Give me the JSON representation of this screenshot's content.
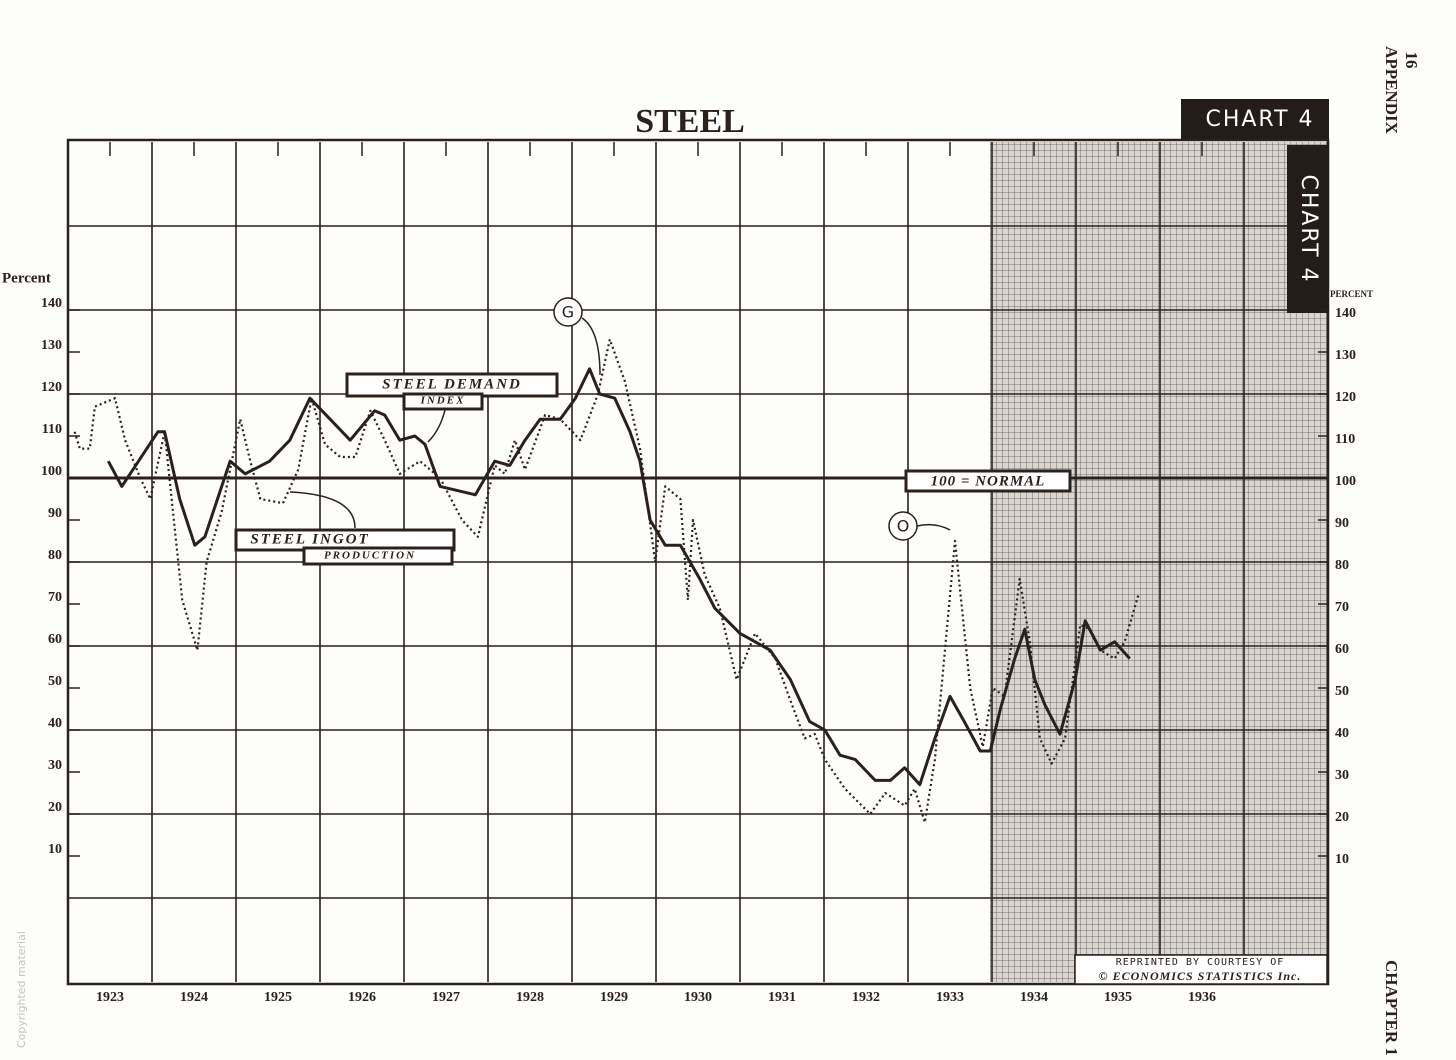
{
  "chart_data": {
    "type": "line",
    "title": "STEEL",
    "chart_label": "CHART 4",
    "chart_label_side": "CHART 4",
    "page_number": "16",
    "page_header": "APPENDIX",
    "page_footer": "CHAPTER 1",
    "watermark": "Copyrighted material",
    "y_axis_label": "Percent",
    "y2_axis_label": "Percent",
    "normal_label": "100 = NORMAL",
    "normal_line": 100,
    "markers": [
      "G",
      "O"
    ],
    "demand_label": [
      "STEEL DEMAND",
      "INDEX"
    ],
    "ingot_label": [
      "STEEL INGOT",
      "PRODUCTION"
    ],
    "credit": [
      "REPRINTED BY COURTESY OF",
      "© ECONOMICS STATISTICS Inc."
    ],
    "xlim": [
      1923,
      1938
    ],
    "xticks": [
      {
        "value": 1923.5,
        "label": "1923"
      },
      {
        "value": 1924.5,
        "label": "1924"
      },
      {
        "value": 1925.5,
        "label": "1925"
      },
      {
        "value": 1926.5,
        "label": "1926"
      },
      {
        "value": 1927.5,
        "label": "1927"
      },
      {
        "value": 1928.5,
        "label": "1928"
      },
      {
        "value": 1929.5,
        "label": "1929"
      },
      {
        "value": 1930.5,
        "label": "1930"
      },
      {
        "value": 1931.5,
        "label": "1931"
      },
      {
        "value": 1932.5,
        "label": "1932"
      },
      {
        "value": 1933.5,
        "label": "1933"
      },
      {
        "value": 1934.5,
        "label": "1934"
      },
      {
        "value": 1935.5,
        "label": "1935"
      },
      {
        "value": 1936.5,
        "label": "1936"
      }
    ],
    "xgrid": [
      1923,
      1924,
      1925,
      1926,
      1927,
      1928,
      1929,
      1930,
      1931,
      1932,
      1933,
      1934,
      1935,
      1936,
      1937,
      1938
    ],
    "ylim": [
      -20,
      180
    ],
    "yticks": [
      10,
      20,
      30,
      40,
      50,
      60,
      70,
      80,
      90,
      100,
      110,
      120,
      130,
      140
    ],
    "y2lim": [
      -20,
      180
    ],
    "y2ticks": [
      10,
      20,
      30,
      40,
      50,
      60,
      70,
      80,
      90,
      100,
      110,
      120,
      130,
      140
    ],
    "ygrid": [
      0,
      20,
      40,
      60,
      80,
      100,
      120,
      140,
      160
    ],
    "grid": true,
    "series": [
      {
        "name": "STEEL DEMAND INDEX",
        "color": "#2a201c",
        "style": "solid",
        "x": [
          1923.48,
          1923.64,
          1924.07,
          1924.15,
          1924.33,
          1924.51,
          1924.63,
          1924.93,
          1925.11,
          1925.4,
          1925.64,
          1925.88,
          1926.12,
          1926.36,
          1926.65,
          1926.77,
          1926.95,
          1927.13,
          1927.25,
          1927.43,
          1927.85,
          1928.08,
          1928.26,
          1928.44,
          1928.62,
          1928.86,
          1929.04,
          1929.21,
          1929.33,
          1929.51,
          1929.69,
          1929.81,
          1929.93,
          1930.11,
          1930.29,
          1930.52,
          1930.7,
          1931.0,
          1931.36,
          1931.6,
          1931.83,
          1932.01,
          1932.19,
          1932.37,
          1932.61,
          1932.79,
          1932.96,
          1933.14,
          1933.32,
          1933.5,
          1933.67,
          1933.86,
          1933.98,
          1934.1,
          1934.27,
          1934.39,
          1934.51,
          1934.63,
          1934.81,
          1934.99,
          1935.11,
          1935.29,
          1935.46,
          1935.64
        ],
        "values": [
          104,
          98,
          111,
          111,
          95,
          84,
          86,
          104,
          101,
          104,
          109,
          119,
          114,
          109,
          116,
          115,
          109,
          110,
          108,
          98,
          96,
          104,
          103,
          109,
          114,
          114,
          119,
          126,
          120,
          119,
          111,
          104,
          90,
          84,
          84,
          76,
          69,
          63,
          59,
          52,
          42,
          40,
          34,
          33,
          28,
          28,
          31,
          27,
          38,
          48,
          42,
          35,
          35,
          45,
          57,
          64,
          52,
          46,
          39,
          52,
          66,
          59,
          61,
          57
        ]
      },
      {
        "name": "STEEL INGOT PRODUCTION",
        "color": "#2a201c",
        "style": "dotted",
        "x": [
          1923.08,
          1923.14,
          1923.26,
          1923.32,
          1923.56,
          1923.68,
          1923.86,
          1923.98,
          1924.15,
          1924.36,
          1924.54,
          1924.65,
          1924.83,
          1925.05,
          1925.17,
          1925.29,
          1925.56,
          1925.74,
          1925.9,
          1926.06,
          1926.24,
          1926.42,
          1926.6,
          1926.77,
          1926.95,
          1927.19,
          1927.43,
          1927.69,
          1927.88,
          1928.08,
          1928.2,
          1928.32,
          1928.44,
          1928.68,
          1928.86,
          1929.1,
          1929.31,
          1929.45,
          1929.63,
          1929.81,
          1929.99,
          1930.11,
          1930.29,
          1930.38,
          1930.44,
          1930.58,
          1930.76,
          1930.96,
          1931.18,
          1931.42,
          1931.6,
          1931.77,
          1931.89,
          1932.01,
          1932.25,
          1932.55,
          1932.73,
          1932.96,
          1933.08,
          1933.2,
          1933.32,
          1933.56,
          1933.74,
          1933.89,
          1934.01,
          1934.15,
          1934.33,
          1934.45,
          1934.57,
          1934.71,
          1934.87,
          1935.05,
          1935.17,
          1935.29,
          1935.46,
          1935.58,
          1935.74
        ],
        "values": [
          111,
          107,
          107,
          117,
          119,
          109,
          100,
          95,
          111,
          71,
          59,
          80,
          92,
          114,
          104,
          95,
          94,
          102,
          119,
          108,
          105,
          105,
          116,
          109,
          101,
          104,
          100,
          90,
          86,
          103,
          101,
          109,
          102,
          115,
          114,
          109,
          120,
          133,
          123,
          107,
          80,
          98,
          95,
          71,
          90,
          77,
          69,
          52,
          63,
          57,
          47,
          38,
          39,
          33,
          26,
          20,
          25,
          22,
          26,
          18,
          33,
          85,
          50,
          36,
          50,
          48,
          76,
          61,
          38,
          32,
          38,
          65,
          64,
          59,
          57,
          61,
          72
        ]
      }
    ]
  }
}
